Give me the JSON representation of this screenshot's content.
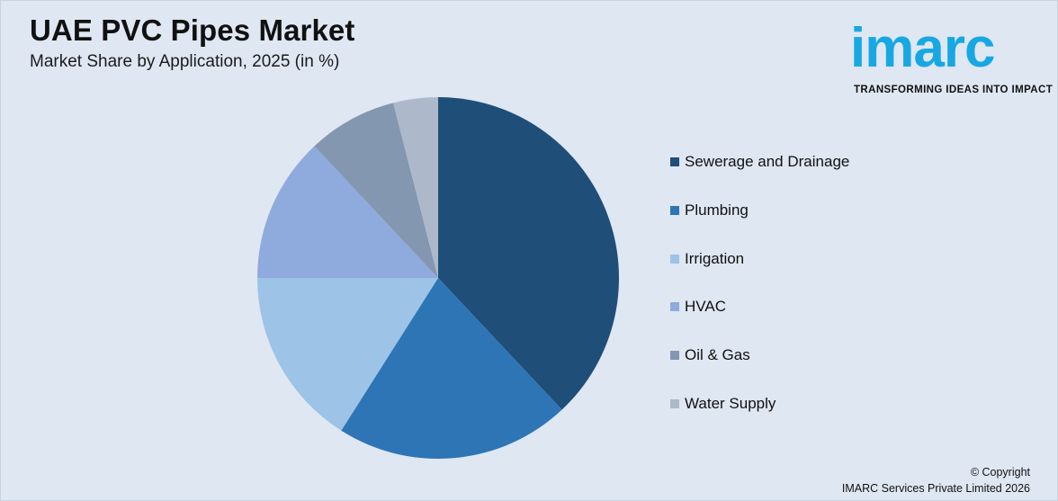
{
  "header": {
    "title": "UAE PVC Pipes Market",
    "subtitle": "Market Share by Application, 2025 (in %)"
  },
  "logo": {
    "wordmark": "imarc",
    "tagline": "TRANSFORMING IDEAS INTO IMPACT",
    "color": "#17a8e3"
  },
  "chart_data": {
    "type": "pie",
    "title": "UAE PVC Pipes Market",
    "subtitle": "Market Share by Application, 2025 (in %)",
    "legend_position": "right",
    "slices": [
      {
        "label": "Sewerage and Drainage",
        "value": 38,
        "color": "#1f4e79"
      },
      {
        "label": "Plumbing",
        "value": 21,
        "color": "#2e75b6"
      },
      {
        "label": "Irrigation",
        "value": 16,
        "color": "#9dc3e6"
      },
      {
        "label": "HVAC",
        "value": 13,
        "color": "#8faadc"
      },
      {
        "label": "Oil & Gas",
        "value": 8,
        "color": "#8497b0"
      },
      {
        "label": "Water Supply",
        "value": 4,
        "color": "#adb9ca"
      }
    ]
  },
  "footer": {
    "copyright_line1": "© Copyright",
    "copyright_line2": "IMARC Services Private Limited 2026"
  }
}
